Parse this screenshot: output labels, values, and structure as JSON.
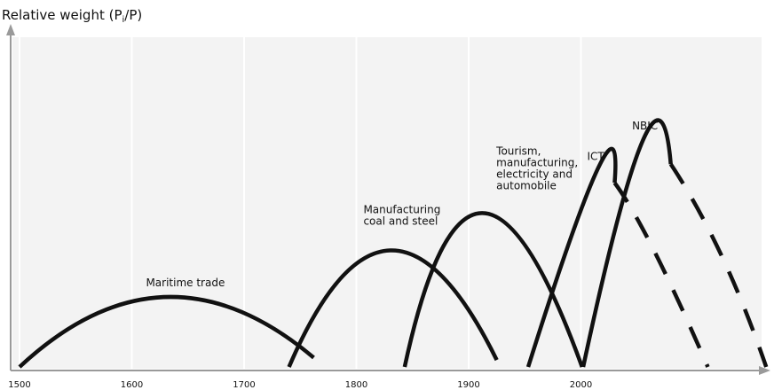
{
  "chart_data": {
    "type": "line",
    "title": "",
    "ylabel": {
      "prefix": "Relative weight (P",
      "sub": "i",
      "suffix": "/P)"
    },
    "xlabel": "",
    "x_ticks": [
      1500,
      1600,
      1700,
      1800,
      1900,
      2000
    ],
    "xlim": [
      1500,
      2160
    ],
    "ylim": [
      0,
      100
    ],
    "grid": "vertical",
    "series": [
      {
        "name": "Maritime trade",
        "label_lines": [
          "Maritime trade"
        ],
        "style": "solid",
        "x": [
          1500,
          1630,
          1762
        ],
        "y": [
          0,
          30,
          4
        ]
      },
      {
        "name": "Manufacturing coal and steel",
        "label_lines": [
          "Manufacturing",
          "coal and steel"
        ],
        "style": "solid",
        "x": [
          1740,
          1830,
          1925
        ],
        "y": [
          0,
          50,
          3
        ]
      },
      {
        "name": "Tourism, manufacturing, electricity and automobile",
        "label_lines": [
          "Tourism,",
          "manufacturing,",
          "electricity and",
          "automobile"
        ],
        "style": "solid",
        "x": [
          1843,
          1912,
          2001
        ],
        "y": [
          0,
          66,
          0
        ]
      },
      {
        "name": "ICT",
        "label_lines": [
          "ICT"
        ],
        "style": "solid",
        "x": [
          1953,
          2015,
          2030
        ],
        "y": [
          0,
          85,
          79
        ]
      },
      {
        "name": "ICT (continuation)",
        "label_lines": [],
        "style": "dashed",
        "x": [
          2030,
          2065,
          2113
        ],
        "y": [
          79,
          50,
          0
        ]
      },
      {
        "name": "NBIC",
        "label_lines": [
          "NBIC"
        ],
        "style": "solid",
        "x": [
          2002,
          2055,
          2080
        ],
        "y": [
          0,
          97,
          87
        ]
      },
      {
        "name": "NBIC (continuation)",
        "label_lines": [],
        "style": "dashed",
        "x": [
          2080,
          2125,
          2165
        ],
        "y": [
          87,
          48,
          0
        ]
      }
    ]
  }
}
